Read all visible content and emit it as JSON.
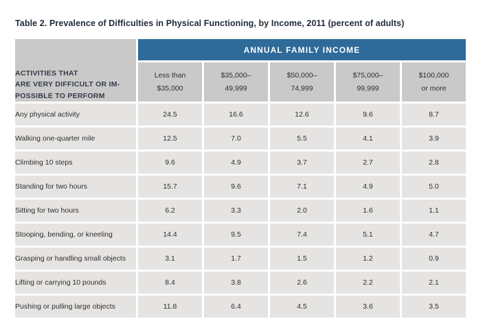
{
  "page": {
    "title": "Table 2. Prevalence of Difficulties in Physical Functioning, by Income, 2011 (percent of adults)"
  },
  "table": {
    "group_header": "ANNUAL FAMILY INCOME",
    "corner_label": "ACTIVITIES THAT\nARE VERY DIFFICULT OR IM-\nPOSSIBLE TO PERFORM",
    "columns": [
      "Less than\n$35,000",
      "$35,000–\n49,999",
      "$50,000–\n74,999",
      "$75,000–\n99,999",
      "$100,000\nor more"
    ],
    "rows": [
      {
        "label": "Any physical activity",
        "values": [
          "24.5",
          "16.6",
          "12.6",
          "9.6",
          "8.7"
        ]
      },
      {
        "label": "Walking one-quarter mile",
        "values": [
          "12.5",
          "7.0",
          "5.5",
          "4.1",
          "3.9"
        ]
      },
      {
        "label": "Climbing 10 steps",
        "values": [
          "9.6",
          "4.9",
          "3.7",
          "2.7",
          "2.8"
        ]
      },
      {
        "label": "Standing for two hours",
        "values": [
          "15.7",
          "9.6",
          "7.1",
          "4.9",
          "5.0"
        ]
      },
      {
        "label": "Sitting for two hours",
        "values": [
          "6.2",
          "3.3",
          "2.0",
          "1.6",
          "1.1"
        ]
      },
      {
        "label": "Stooping, bending, or kneeling",
        "values": [
          "14.4",
          "9.5",
          "7.4",
          "5.1",
          "4.7"
        ]
      },
      {
        "label": "Grasping or handling small objects",
        "values": [
          "3.1",
          "1.7",
          "1.5",
          "1.2",
          "0.9"
        ]
      },
      {
        "label": "Lifting or carrying 10 pounds",
        "values": [
          "8.4",
          "3.8",
          "2.6",
          "2.2",
          "2.1"
        ]
      },
      {
        "label": "Pushing or pulling large objects",
        "values": [
          "11.8",
          "6.4",
          "4.5",
          "3.6",
          "3.5"
        ]
      }
    ]
  },
  "colors": {
    "header_blue": "#2e6b9a",
    "header_gray": "#c9c9c9",
    "cell_gray": "#e6e4e2",
    "title_text": "#1f2a38",
    "corner_text": "#333b46",
    "cell_text": "#2e2e2e"
  },
  "chart_data": {
    "type": "table",
    "title": "Table 2. Prevalence of Difficulties in Physical Functioning, by Income, 2011 (percent of adults)",
    "categories": [
      "Less than $35,000",
      "$35,000–49,999",
      "$50,000–74,999",
      "$75,000–99,999",
      "$100,000 or more"
    ],
    "series": [
      {
        "name": "Any physical activity",
        "values": [
          24.5,
          16.6,
          12.6,
          9.6,
          8.7
        ]
      },
      {
        "name": "Walking one-quarter mile",
        "values": [
          12.5,
          7.0,
          5.5,
          4.1,
          3.9
        ]
      },
      {
        "name": "Climbing 10 steps",
        "values": [
          9.6,
          4.9,
          3.7,
          2.7,
          2.8
        ]
      },
      {
        "name": "Standing for two hours",
        "values": [
          15.7,
          9.6,
          7.1,
          4.9,
          5.0
        ]
      },
      {
        "name": "Sitting for two hours",
        "values": [
          6.2,
          3.3,
          2.0,
          1.6,
          1.1
        ]
      },
      {
        "name": "Stooping, bending, or kneeling",
        "values": [
          14.4,
          9.5,
          7.4,
          5.1,
          4.7
        ]
      },
      {
        "name": "Grasping or handling small objects",
        "values": [
          3.1,
          1.7,
          1.5,
          1.2,
          0.9
        ]
      },
      {
        "name": "Lifting or carrying 10 pounds",
        "values": [
          8.4,
          3.8,
          2.6,
          2.2,
          2.1
        ]
      },
      {
        "name": "Pushing or pulling large objects",
        "values": [
          11.8,
          6.4,
          4.5,
          3.6,
          3.5
        ]
      }
    ],
    "unit": "percent of adults"
  }
}
